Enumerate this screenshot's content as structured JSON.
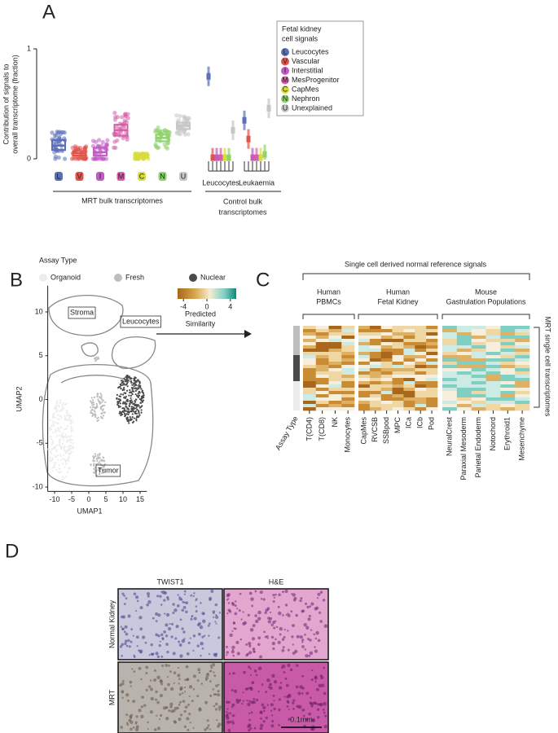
{
  "panel_a": {
    "label": "A",
    "y_axis_label": [
      "Contribution of signals to",
      "overall transcriptome (fraction)"
    ],
    "ylim": [
      0,
      1
    ],
    "yticks": [
      0,
      1
    ],
    "groups": [
      {
        "letter": "L",
        "color": "#5b6fb9",
        "median": 0.12,
        "q1": 0.08,
        "q3": 0.17
      },
      {
        "letter": "V",
        "color": "#e0534b",
        "median": 0.05,
        "q1": 0.03,
        "q3": 0.07
      },
      {
        "letter": "I",
        "color": "#c05cc2",
        "median": 0.06,
        "q1": 0.03,
        "q3": 0.1
      },
      {
        "letter": "M",
        "color": "#d460a8",
        "median": 0.26,
        "q1": 0.21,
        "q3": 0.31
      },
      {
        "letter": "C",
        "color": "#d6dd3c",
        "median": 0.02,
        "q1": 0.01,
        "q3": 0.03
      },
      {
        "letter": "N",
        "color": "#8fd26b",
        "median": 0.19,
        "q1": 0.16,
        "q3": 0.22
      },
      {
        "letter": "U",
        "color": "#c6c6c6",
        "median": 0.3,
        "q1": 0.27,
        "q3": 0.33
      }
    ],
    "group_label": "MRT bulk transcriptomes",
    "control_label": [
      "Control bulk",
      "transcriptomes"
    ],
    "controls": [
      {
        "name": "Leucocytes",
        "values": [
          0.75,
          0.01,
          0.01,
          0.01,
          0.01,
          0.01,
          0.26
        ]
      },
      {
        "name": "Leukaemia",
        "values": [
          0.35,
          0.18,
          0.01,
          0.01,
          0.01,
          0.04,
          0.46
        ]
      }
    ],
    "legend": {
      "title": [
        "Fetal kidney",
        "cell signals"
      ],
      "names": [
        "Leucocytes",
        "Vascular",
        "Interstitial",
        "MesProgenitor",
        "CapMes",
        "Nephron",
        "Unexplained"
      ]
    }
  },
  "panel_b": {
    "label": "B",
    "legend_title": "Assay Type",
    "legend": [
      {
        "name": "Organoid",
        "color": "#ececec"
      },
      {
        "name": "Fresh",
        "color": "#bdbdbd"
      },
      {
        "name": "Nuclear",
        "color": "#4a4a4a"
      }
    ],
    "xlim": [
      -12,
      17
    ],
    "ylim": [
      -10.5,
      13
    ],
    "xticks": [
      -10,
      -5,
      0,
      5,
      10,
      15
    ],
    "yticks": [
      -10,
      -5,
      0,
      5,
      10
    ],
    "xlabel": "UMAP1",
    "ylabel": "UMAP2",
    "regions": [
      "Stroma",
      "Leucocytes",
      "Tumor"
    ],
    "arrow_label": [
      "Predicted",
      "Similarity"
    ],
    "colorbar_lim": [
      -5,
      5
    ],
    "colorbar_ticks": [
      -4,
      0,
      4
    ]
  },
  "panel_c": {
    "label": "C",
    "title": "Single cell derived normal reference signals",
    "groups": [
      {
        "name": [
          "Human",
          "PBMCs"
        ],
        "columns": [
          "T(CD4)",
          "T(CD8)",
          "NK",
          "Monocytes"
        ]
      },
      {
        "name": [
          "Human",
          "Fetal Kidney"
        ],
        "columns": [
          "CapMes",
          "RVCSB",
          "SSBpod",
          "MPC",
          "ICa",
          "ICb",
          "Pod"
        ]
      },
      {
        "name": [
          "Mouse",
          "Gastrulation Populations"
        ],
        "columns": [
          "NeuralCrest",
          "Paraxial Mesoderm",
          "Parietal Endoderm",
          "Notochord",
          "Erythroid1",
          "Mesenchyme"
        ]
      }
    ],
    "assay_label": "Assay Type",
    "row_label": "MRT single cell transcriptomes"
  },
  "panel_d": {
    "label": "D",
    "columns": [
      "TWIST1",
      "H&E"
    ],
    "rows": [
      "Normal Kidney",
      "MRT"
    ],
    "scale_bar": "0.1mm"
  }
}
